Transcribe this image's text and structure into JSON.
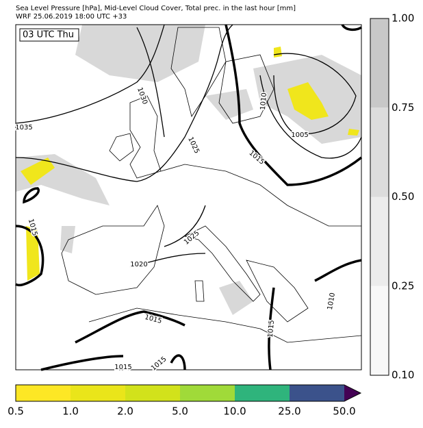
{
  "header": {
    "title": "Sea Level Pressure [hPa], Mid-Level Cloud Cover, Total prec. in the last hour [mm]",
    "subtitle": "WRF 25.06.2019 18:00 UTC +33"
  },
  "map": {
    "time_label": "03 UTC Thu",
    "isobar_labels": [
      "1030",
      "1035",
      "1025",
      "1010",
      "1005",
      "1015",
      "1015",
      "1025",
      "1020",
      "1015",
      "1010",
      "1015",
      "1015",
      "1015"
    ]
  },
  "cloud_colorbar": {
    "ticks": [
      "1.00",
      "0.75",
      "0.50",
      "0.25",
      "0.10"
    ],
    "colors": [
      "#c8c8c8",
      "#dcdcdc",
      "#ececec",
      "#f8f8f8"
    ]
  },
  "precip_colorbar": {
    "ticks": [
      "0.5",
      "1.0",
      "2.0",
      "5.0",
      "10.0",
      "25.0",
      "50.0"
    ],
    "colors": [
      "#fde725",
      "#eae51a",
      "#d2e21b",
      "#a0da39",
      "#2fb47c",
      "#3b528b"
    ],
    "extend_color": "#440154"
  }
}
